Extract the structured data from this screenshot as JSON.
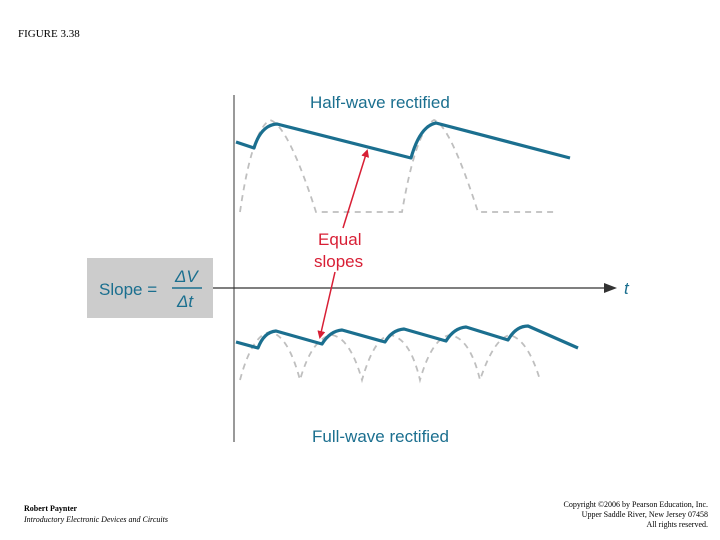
{
  "figure_label": "FIGURE 3.38",
  "diagram": {
    "half_wave_label": "Half-wave rectified",
    "full_wave_label": "Full-wave rectified",
    "equal_slopes_line1": "Equal",
    "equal_slopes_line2": "slopes",
    "slope_text": "Slope =",
    "slope_numerator": "ΔV",
    "slope_denominator": "Δt",
    "time_axis_label": "t"
  },
  "colors": {
    "waveform": "#1b6f8f",
    "dashed_wave": "#bfbfbf",
    "arrow": "#d81f35",
    "label_text": "#1b6f8f",
    "slope_box": "#cccccc",
    "axis": "#999999"
  },
  "footer": {
    "author": "Robert Paynter",
    "book": "Introductory Electronic Devices and Circuits",
    "copyright_line1": "Copyright ©2006 by Pearson Education, Inc.",
    "copyright_line2": "Upper Saddle River, New Jersey 07458",
    "copyright_line3": "All rights reserved."
  }
}
